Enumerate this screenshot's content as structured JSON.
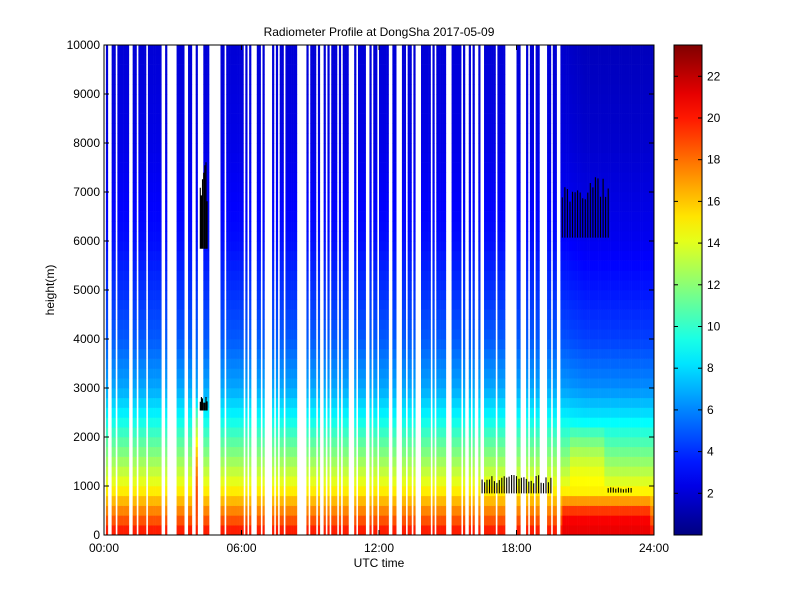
{
  "chart_data": {
    "type": "heatmap",
    "title": "Radiometer Profile at DongSha 2017-05-09",
    "xlabel": "UTC time",
    "ylabel": "height(m)",
    "xlim": [
      0,
      24
    ],
    "ylim": [
      0,
      10000
    ],
    "x_ticks": [
      {
        "value": 0,
        "label": "00:00"
      },
      {
        "value": 6,
        "label": "06:00"
      },
      {
        "value": 12,
        "label": "12:00"
      },
      {
        "value": 18,
        "label": "18:00"
      },
      {
        "value": 24,
        "label": "24:00"
      }
    ],
    "y_ticks": [
      {
        "value": 0,
        "label": "0"
      },
      {
        "value": 1000,
        "label": "1000"
      },
      {
        "value": 2000,
        "label": "2000"
      },
      {
        "value": 3000,
        "label": "3000"
      },
      {
        "value": 4000,
        "label": "4000"
      },
      {
        "value": 5000,
        "label": "5000"
      },
      {
        "value": 6000,
        "label": "6000"
      },
      {
        "value": 7000,
        "label": "7000"
      },
      {
        "value": 8000,
        "label": "8000"
      },
      {
        "value": 9000,
        "label": "9000"
      },
      {
        "value": 10000,
        "label": "10000"
      }
    ],
    "colorbar": {
      "colormap": "jet",
      "range": [
        0,
        23.5
      ],
      "ticks": [
        {
          "value": 2,
          "label": "2"
        },
        {
          "value": 4,
          "label": "4"
        },
        {
          "value": 6,
          "label": "6"
        },
        {
          "value": 8,
          "label": "8"
        },
        {
          "value": 10,
          "label": "10"
        },
        {
          "value": 12,
          "label": "12"
        },
        {
          "value": 14,
          "label": "14"
        },
        {
          "value": 16,
          "label": "16"
        },
        {
          "value": 18,
          "label": "18"
        },
        {
          "value": 20,
          "label": "20"
        },
        {
          "value": 22,
          "label": "22"
        }
      ]
    },
    "vertical_profile": [
      {
        "height": 0,
        "value": 20.5
      },
      {
        "height": 500,
        "value": 17.5
      },
      {
        "height": 1000,
        "value": 14.5
      },
      {
        "height": 1500,
        "value": 12.5
      },
      {
        "height": 2000,
        "value": 10.5
      },
      {
        "height": 2500,
        "value": 8.5
      },
      {
        "height": 3000,
        "value": 6.8
      },
      {
        "height": 4000,
        "value": 5.0
      },
      {
        "height": 5000,
        "value": 4.0
      },
      {
        "height": 6000,
        "value": 3.2
      },
      {
        "height": 8000,
        "value": 2.4
      },
      {
        "height": 10000,
        "value": 2.0
      }
    ],
    "data_gaps": "white vertical stripes between 00:00 and about 20:00",
    "features": [
      {
        "name": "warm column",
        "time_range": [
          4.0,
          4.3
        ],
        "height_range": [
          0,
          2800
        ],
        "value": 19
      },
      {
        "name": "late-day surface maximum",
        "time_range": [
          20.0,
          23.8
        ],
        "height_range": [
          0,
          800
        ],
        "value": 21
      },
      {
        "name": "afternoon low-level plume",
        "time_range": [
          20.3,
          21.8
        ],
        "height_range": [
          0,
          2300
        ],
        "value": 15
      }
    ],
    "black_contours": [
      {
        "time_range": [
          4.2,
          4.5
        ],
        "height_range": [
          5600,
          8000
        ]
      },
      {
        "time_range": [
          4.2,
          4.5
        ],
        "height_range": [
          2500,
          2900
        ]
      },
      {
        "time_range": [
          16.5,
          19.5
        ],
        "height_range": [
          800,
          1300
        ]
      },
      {
        "time_range": [
          20.0,
          22.0
        ],
        "height_range": [
          5900,
          7600
        ]
      },
      {
        "time_range": [
          22.0,
          23.0
        ],
        "height_range": [
          850,
          1000
        ]
      }
    ]
  }
}
